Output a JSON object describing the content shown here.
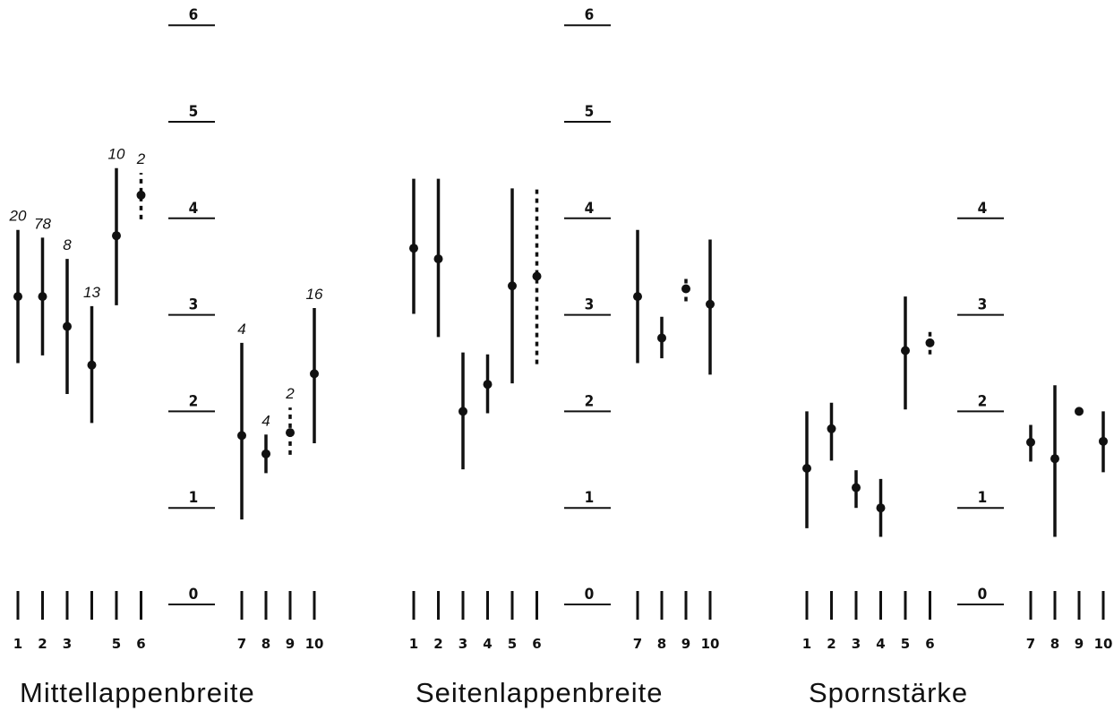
{
  "chart_data": [
    {
      "type": "range",
      "title": "Mittellappenbreite",
      "categories": [
        "1",
        "2",
        "3",
        null,
        "5",
        "6",
        "7",
        "8",
        "9",
        "10"
      ],
      "values": [
        3.19,
        3.19,
        2.88,
        2.48,
        3.82,
        4.24,
        1.75,
        1.56,
        1.78,
        2.39
      ],
      "low": [
        2.5,
        2.58,
        2.18,
        1.88,
        3.1,
        3.99,
        0.88,
        1.36,
        1.55,
        1.67
      ],
      "high": [
        3.88,
        3.8,
        3.58,
        3.09,
        4.52,
        4.47,
        2.71,
        1.76,
        2.04,
        3.07
      ],
      "dashed": [
        false,
        false,
        false,
        false,
        false,
        true,
        false,
        false,
        true,
        false
      ],
      "n_labels": [
        "20",
        "78",
        "8",
        "13",
        "10",
        "2",
        "4",
        "4",
        "2",
        "16"
      ],
      "ylim": [
        0,
        6
      ],
      "yticks": [
        0,
        1,
        2,
        3,
        4,
        5,
        6
      ],
      "color": "#111"
    },
    {
      "type": "range",
      "title": "Seitenlappenbreite",
      "categories": [
        "1",
        "2",
        "3",
        "4",
        "5",
        "6",
        "7",
        "8",
        "9",
        "10"
      ],
      "values": [
        3.69,
        3.58,
        2.0,
        2.28,
        3.3,
        3.4,
        3.19,
        2.76,
        3.27,
        3.11
      ],
      "low": [
        3.01,
        2.77,
        1.4,
        1.98,
        2.29,
        2.49,
        2.5,
        2.55,
        3.14,
        2.38
      ],
      "high": [
        4.41,
        4.41,
        2.61,
        2.59,
        4.31,
        4.31,
        3.88,
        2.98,
        3.4,
        3.78
      ],
      "dashed": [
        false,
        false,
        false,
        false,
        false,
        true,
        false,
        false,
        true,
        false
      ],
      "ylim": [
        0,
        6
      ],
      "yticks": [
        0,
        1,
        2,
        3,
        4,
        5,
        6
      ],
      "color": "#111"
    },
    {
      "type": "range",
      "title": "Spornstärke",
      "categories": [
        "1",
        "2",
        "3",
        "4",
        "5",
        "6",
        "7",
        "8",
        "9",
        "10"
      ],
      "values": [
        1.41,
        1.82,
        1.21,
        1.0,
        2.63,
        2.71,
        1.68,
        1.51,
        2.0,
        1.69
      ],
      "low": [
        0.79,
        1.49,
        1.0,
        0.7,
        2.02,
        2.59,
        1.48,
        0.7,
        null,
        1.37
      ],
      "high": [
        2.0,
        2.09,
        1.39,
        1.3,
        3.19,
        2.83,
        1.86,
        2.27,
        null,
        2.0
      ],
      "dashed": [
        false,
        false,
        false,
        false,
        false,
        true,
        false,
        false,
        false,
        false
      ],
      "ylim": [
        0,
        4
      ],
      "yticks": [
        0,
        1,
        2,
        3,
        4
      ],
      "color": "#111"
    }
  ]
}
